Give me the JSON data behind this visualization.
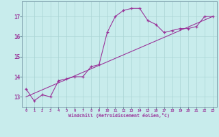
{
  "x": [
    0,
    1,
    2,
    3,
    4,
    5,
    6,
    7,
    8,
    9,
    10,
    11,
    12,
    13,
    14,
    15,
    16,
    17,
    18,
    19,
    20,
    21,
    22,
    23
  ],
  "windchill": [
    13.4,
    12.8,
    13.1,
    13.0,
    13.8,
    13.9,
    14.0,
    14.0,
    14.5,
    14.6,
    16.2,
    17.0,
    17.3,
    17.4,
    17.4,
    16.8,
    16.6,
    16.2,
    16.3,
    16.4,
    16.4,
    16.5,
    17.0,
    17.0
  ],
  "line2_x": [
    0,
    23
  ],
  "line2_y": [
    13.0,
    17.0
  ],
  "bg_color": "#c8ecec",
  "line_color": "#993399",
  "marker": "+",
  "xlabel": "Windchill (Refroidissement éolien,°C)",
  "ylabel_ticks": [
    13,
    14,
    15,
    16,
    17
  ],
  "xlim": [
    -0.5,
    23.5
  ],
  "ylim": [
    12.5,
    17.75
  ],
  "grid_color": "#aad4d4"
}
